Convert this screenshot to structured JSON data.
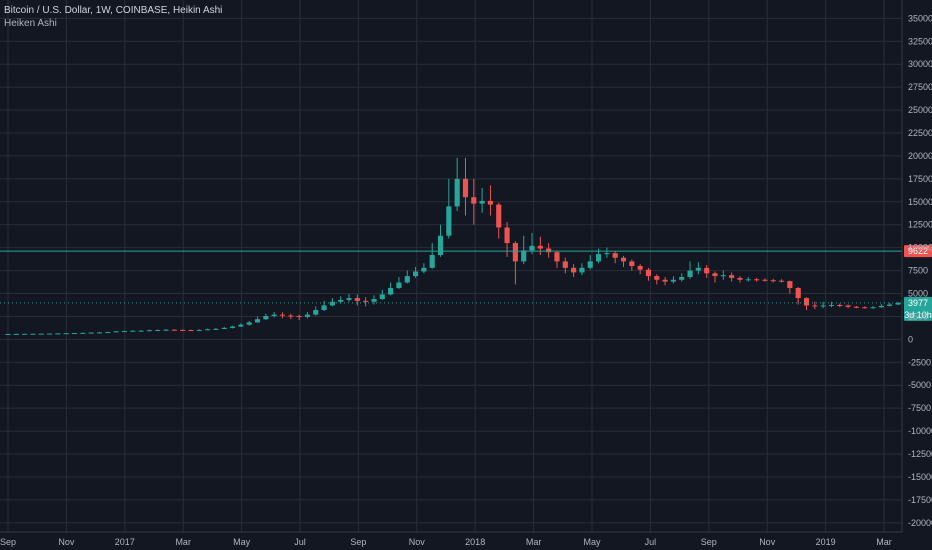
{
  "header": {
    "title": "Bitcoin / U.S. Dollar, 1W, COINBASE, Heikin Ashi",
    "indicator": "Heiken Ashi"
  },
  "colors": {
    "background": "#131722",
    "grid": "#2a2e39",
    "up": "#26a69a",
    "down": "#ef5350",
    "text": "#b2b5be",
    "price_line": "#26a69a"
  },
  "chart_data": {
    "type": "candlestick",
    "ylim": [
      -21000,
      37000
    ],
    "y_ticks": [
      35000,
      32500,
      30000,
      27500,
      25000,
      22500,
      20000,
      17500,
      15000,
      12500,
      10000,
      7500,
      5000,
      2500,
      0,
      -2500,
      -5000,
      -7500,
      -10000,
      -12500,
      -15000,
      -17500,
      -20000
    ],
    "x_ticks": [
      "Sep",
      "Nov",
      "2017",
      "Mar",
      "May",
      "Jul",
      "Sep",
      "Nov",
      "2018",
      "Mar",
      "May",
      "Jul",
      "Sep",
      "Nov",
      "2019",
      "Mar"
    ],
    "price_labels": {
      "high_line_value": "9622",
      "last_price": "3977",
      "countdown": "3d 10h"
    },
    "candles_note": "weekly Heikin Ashi candles; open/close/high/low in USD",
    "candles": [
      [
        580,
        590,
        600,
        575
      ],
      [
        590,
        600,
        612,
        585
      ],
      [
        600,
        610,
        620,
        595
      ],
      [
        610,
        615,
        628,
        605
      ],
      [
        615,
        625,
        640,
        610
      ],
      [
        625,
        635,
        650,
        620
      ],
      [
        635,
        650,
        665,
        630
      ],
      [
        650,
        670,
        690,
        645
      ],
      [
        670,
        690,
        710,
        665
      ],
      [
        690,
        710,
        735,
        685
      ],
      [
        710,
        740,
        770,
        705
      ],
      [
        740,
        760,
        790,
        730
      ],
      [
        760,
        800,
        840,
        750
      ],
      [
        800,
        870,
        920,
        790
      ],
      [
        870,
        900,
        950,
        840
      ],
      [
        900,
        940,
        990,
        870
      ],
      [
        940,
        950,
        1000,
        880
      ],
      [
        950,
        1000,
        1060,
        920
      ],
      [
        1000,
        1020,
        1080,
        960
      ],
      [
        1020,
        1050,
        1120,
        980
      ],
      [
        1050,
        1030,
        1110,
        970
      ],
      [
        1030,
        1010,
        1080,
        950
      ],
      [
        1010,
        1000,
        1060,
        920
      ],
      [
        1000,
        1030,
        1100,
        960
      ],
      [
        1030,
        1100,
        1180,
        1000
      ],
      [
        1100,
        1150,
        1240,
        1050
      ],
      [
        1150,
        1250,
        1350,
        1100
      ],
      [
        1250,
        1400,
        1500,
        1200
      ],
      [
        1400,
        1600,
        1750,
        1350
      ],
      [
        1600,
        1850,
        2000,
        1500
      ],
      [
        1850,
        2200,
        2500,
        1800
      ],
      [
        2200,
        2550,
        2800,
        2100
      ],
      [
        2550,
        2700,
        3000,
        2400
      ],
      [
        2700,
        2600,
        2950,
        2300
      ],
      [
        2600,
        2550,
        2800,
        2200
      ],
      [
        2550,
        2450,
        2700,
        2100
      ],
      [
        2450,
        2700,
        3000,
        2300
      ],
      [
        2700,
        3200,
        3600,
        2600
      ],
      [
        3200,
        3700,
        4200,
        3100
      ],
      [
        3700,
        4100,
        4500,
        3600
      ],
      [
        4100,
        4300,
        4700,
        3900
      ],
      [
        4300,
        4500,
        4950,
        4100
      ],
      [
        4500,
        4200,
        4900,
        3700
      ],
      [
        4200,
        4100,
        4600,
        3600
      ],
      [
        4100,
        4400,
        4800,
        3800
      ],
      [
        4400,
        4900,
        5400,
        4300
      ],
      [
        4900,
        5600,
        6200,
        4800
      ],
      [
        5600,
        6200,
        6800,
        5500
      ],
      [
        6200,
        6900,
        7500,
        6100
      ],
      [
        6900,
        7400,
        7900,
        6700
      ],
      [
        7400,
        7800,
        8300,
        7200
      ],
      [
        7800,
        9200,
        10500,
        7700
      ],
      [
        9200,
        11300,
        12500,
        9000
      ],
      [
        11300,
        14500,
        17500,
        11000
      ],
      [
        14500,
        17500,
        19800,
        14000
      ],
      [
        17500,
        15500,
        19800,
        13500
      ],
      [
        15500,
        14800,
        17500,
        12500
      ],
      [
        14800,
        15100,
        16500,
        13800
      ],
      [
        15100,
        14700,
        16800,
        13500
      ],
      [
        14700,
        12200,
        14900,
        11000
      ],
      [
        12200,
        10500,
        12800,
        9000
      ],
      [
        10500,
        8500,
        10700,
        6000
      ],
      [
        8500,
        9700,
        11300,
        8200
      ],
      [
        9700,
        10200,
        11600,
        9300
      ],
      [
        10200,
        9900,
        11200,
        9200
      ],
      [
        9900,
        9500,
        10500,
        8900
      ],
      [
        9500,
        8500,
        9700,
        7800
      ],
      [
        8500,
        7800,
        8900,
        7200
      ],
      [
        7800,
        7300,
        8200,
        6800
      ],
      [
        7300,
        7800,
        8300,
        7000
      ],
      [
        7800,
        8500,
        9200,
        7600
      ],
      [
        8500,
        9300,
        9900,
        8300
      ],
      [
        9300,
        9400,
        10000,
        8900
      ],
      [
        9400,
        8900,
        9600,
        8300
      ],
      [
        8900,
        8500,
        9100,
        7900
      ],
      [
        8500,
        8000,
        8700,
        7500
      ],
      [
        8000,
        7600,
        8200,
        7100
      ],
      [
        7600,
        6900,
        7800,
        6400
      ],
      [
        6900,
        6500,
        7100,
        6000
      ],
      [
        6500,
        6300,
        6800,
        5900
      ],
      [
        6300,
        6500,
        6900,
        6100
      ],
      [
        6500,
        6800,
        7200,
        6300
      ],
      [
        6800,
        7500,
        8500,
        6600
      ],
      [
        7500,
        7800,
        8400,
        7100
      ],
      [
        7800,
        7200,
        8100,
        6700
      ],
      [
        7200,
        6900,
        7400,
        6200
      ],
      [
        6900,
        7000,
        7500,
        6500
      ],
      [
        7000,
        6700,
        7300,
        6300
      ],
      [
        6700,
        6500,
        6900,
        6200
      ],
      [
        6500,
        6550,
        6800,
        6300
      ],
      [
        6550,
        6500,
        6700,
        6300
      ],
      [
        6500,
        6450,
        6650,
        6300
      ],
      [
        6450,
        6400,
        6600,
        6200
      ],
      [
        6400,
        6350,
        6550,
        6200
      ],
      [
        6350,
        5600,
        6400,
        5000
      ],
      [
        5600,
        4500,
        5700,
        3800
      ],
      [
        4500,
        3700,
        4600,
        3200
      ],
      [
        3700,
        3600,
        4100,
        3300
      ],
      [
        3600,
        3700,
        4100,
        3400
      ],
      [
        3700,
        3750,
        4100,
        3500
      ],
      [
        3750,
        3700,
        3900,
        3500
      ],
      [
        3700,
        3550,
        3800,
        3400
      ],
      [
        3550,
        3500,
        3650,
        3400
      ],
      [
        3500,
        3450,
        3600,
        3350
      ],
      [
        3450,
        3500,
        3650,
        3350
      ],
      [
        3500,
        3650,
        3850,
        3450
      ],
      [
        3650,
        3800,
        4000,
        3600
      ],
      [
        3800,
        3977,
        4100,
        3750
      ]
    ]
  }
}
